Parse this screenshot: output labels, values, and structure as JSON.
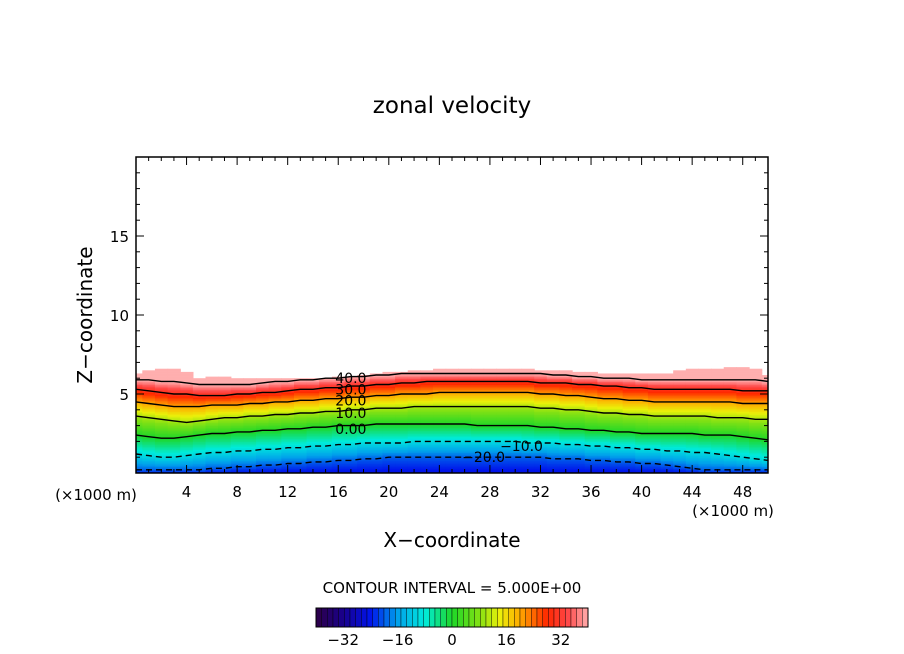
{
  "chart_data": {
    "type": "heatmap",
    "title": "zonal velocity",
    "xlabel": "X−coordinate",
    "ylabel": "Z−coordinate",
    "x_unit_left": "(×1000 m)",
    "x_unit_right": "(×1000 m)",
    "xlim": [
      0,
      50
    ],
    "ylim": [
      0,
      20
    ],
    "xticks": [
      4,
      8,
      12,
      16,
      20,
      24,
      28,
      32,
      36,
      40,
      44,
      48
    ],
    "yticks": [
      5,
      10,
      15
    ],
    "contour_interval_text": "CONTOUR INTERVAL = 5.000E+00",
    "contour_labels": [
      {
        "text": "40.0",
        "x": 17,
        "z": 6.0
      },
      {
        "text": "30.0",
        "x": 17,
        "z": 5.3
      },
      {
        "text": "20.0",
        "x": 17,
        "z": 4.6
      },
      {
        "text": "10.0",
        "x": 17,
        "z": 3.8
      },
      {
        "text": "0.00",
        "x": 17,
        "z": 2.8
      },
      {
        "text": "−10.0",
        "x": 30.5,
        "z": 1.7
      },
      {
        "text": "−20.0",
        "x": 27.5,
        "z": 1.0
      }
    ],
    "field_top_z": [
      6.3,
      6.5,
      6.6,
      6.6,
      6.4,
      6.0,
      6.1,
      6.1,
      6.0,
      6.0,
      6.0,
      6.0,
      6.0,
      6.0,
      6.0,
      6.0,
      6.1,
      6.1,
      6.2,
      6.3,
      6.4,
      6.4,
      6.5,
      6.5,
      6.55,
      6.55,
      6.6,
      6.6,
      6.6,
      6.6,
      6.6,
      6.55,
      6.5,
      6.5,
      6.45,
      6.4,
      6.35,
      6.3,
      6.3,
      6.3,
      6.3,
      6.3,
      6.3,
      6.5,
      6.6,
      6.6,
      6.6,
      6.65,
      6.65,
      6.6,
      6.2
    ],
    "contours": [
      {
        "value": 40,
        "z": [
          5.9,
          5.9,
          5.8,
          5.8,
          5.7,
          5.6,
          5.6,
          5.6,
          5.6,
          5.6,
          5.7,
          5.8,
          5.8,
          5.9,
          5.9,
          6.0,
          6.0,
          6.1,
          6.1,
          6.2,
          6.2,
          6.3,
          6.3,
          6.3,
          6.3,
          6.3,
          6.3,
          6.3,
          6.3,
          6.3,
          6.3,
          6.3,
          6.3,
          6.2,
          6.2,
          6.1,
          6.1,
          6.0,
          6.0,
          6.0,
          5.9,
          5.9,
          5.9,
          5.9,
          5.9,
          5.9,
          5.9,
          5.9,
          5.9,
          5.9,
          5.8
        ]
      },
      {
        "value": 30,
        "z": [
          5.3,
          5.2,
          5.1,
          5.0,
          5.0,
          4.9,
          4.9,
          4.9,
          5.0,
          5.0,
          5.1,
          5.1,
          5.2,
          5.3,
          5.3,
          5.4,
          5.4,
          5.5,
          5.5,
          5.6,
          5.6,
          5.7,
          5.7,
          5.8,
          5.8,
          5.8,
          5.8,
          5.8,
          5.8,
          5.8,
          5.8,
          5.8,
          5.7,
          5.7,
          5.7,
          5.6,
          5.6,
          5.5,
          5.5,
          5.4,
          5.4,
          5.3,
          5.3,
          5.3,
          5.3,
          5.3,
          5.3,
          5.3,
          5.2,
          5.2,
          5.2
        ]
      },
      {
        "value": 20,
        "z": [
          4.5,
          4.4,
          4.3,
          4.2,
          4.2,
          4.2,
          4.3,
          4.3,
          4.3,
          4.4,
          4.4,
          4.5,
          4.5,
          4.6,
          4.6,
          4.7,
          4.7,
          4.8,
          4.8,
          4.9,
          4.9,
          5.0,
          5.0,
          5.0,
          5.1,
          5.1,
          5.1,
          5.1,
          5.1,
          5.1,
          5.1,
          5.1,
          5.0,
          5.0,
          4.9,
          4.9,
          4.8,
          4.7,
          4.7,
          4.6,
          4.6,
          4.5,
          4.5,
          4.5,
          4.5,
          4.5,
          4.5,
          4.5,
          4.4,
          4.4,
          4.4
        ]
      },
      {
        "value": 10,
        "z": [
          3.6,
          3.5,
          3.4,
          3.3,
          3.2,
          3.3,
          3.4,
          3.5,
          3.5,
          3.6,
          3.6,
          3.7,
          3.7,
          3.8,
          3.8,
          3.9,
          3.9,
          4.0,
          4.0,
          4.1,
          4.1,
          4.1,
          4.2,
          4.2,
          4.2,
          4.2,
          4.2,
          4.2,
          4.2,
          4.2,
          4.2,
          4.2,
          4.1,
          4.1,
          4.0,
          4.0,
          3.9,
          3.8,
          3.8,
          3.7,
          3.7,
          3.6,
          3.6,
          3.6,
          3.6,
          3.6,
          3.5,
          3.5,
          3.5,
          3.4,
          3.4
        ]
      },
      {
        "value": 0,
        "z": [
          2.4,
          2.3,
          2.2,
          2.2,
          2.3,
          2.4,
          2.5,
          2.5,
          2.6,
          2.6,
          2.7,
          2.7,
          2.8,
          2.8,
          2.9,
          2.9,
          3.0,
          3.0,
          3.0,
          3.1,
          3.1,
          3.1,
          3.1,
          3.1,
          3.1,
          3.1,
          3.1,
          3.0,
          3.0,
          3.0,
          3.0,
          3.0,
          2.9,
          2.9,
          2.8,
          2.8,
          2.7,
          2.7,
          2.6,
          2.6,
          2.5,
          2.5,
          2.5,
          2.5,
          2.5,
          2.4,
          2.4,
          2.4,
          2.3,
          2.2,
          2.1
        ]
      },
      {
        "value": -10,
        "z": [
          1.2,
          1.1,
          1.0,
          1.0,
          1.1,
          1.2,
          1.3,
          1.3,
          1.4,
          1.4,
          1.5,
          1.5,
          1.6,
          1.6,
          1.7,
          1.7,
          1.8,
          1.8,
          1.9,
          1.9,
          1.9,
          1.9,
          2.0,
          2.0,
          2.0,
          2.0,
          2.0,
          2.0,
          2.0,
          2.0,
          2.0,
          1.9,
          1.9,
          1.9,
          1.8,
          1.8,
          1.7,
          1.7,
          1.6,
          1.6,
          1.5,
          1.5,
          1.4,
          1.4,
          1.3,
          1.3,
          1.2,
          1.1,
          1.0,
          0.9,
          0.8
        ]
      },
      {
        "value": -20,
        "z": [
          0.2,
          0.2,
          0.2,
          0.2,
          0.2,
          0.2,
          0.3,
          0.3,
          0.4,
          0.4,
          0.5,
          0.5,
          0.6,
          0.6,
          0.7,
          0.7,
          0.8,
          0.8,
          0.9,
          0.9,
          1.0,
          1.0,
          1.0,
          1.0,
          1.0,
          1.0,
          1.0,
          1.0,
          1.0,
          1.0,
          1.0,
          1.0,
          1.0,
          0.9,
          0.9,
          0.9,
          0.8,
          0.8,
          0.7,
          0.7,
          0.6,
          0.6,
          0.5,
          0.4,
          0.3,
          0.2,
          0.2,
          0.2,
          0.2,
          0.2,
          0.2
        ]
      }
    ],
    "colorbar": {
      "min": -40,
      "max": 40,
      "tick_values": [
        -32,
        -16,
        0,
        16,
        32
      ],
      "tick_labels": [
        "−32",
        "−16",
        "0",
        "16",
        "32"
      ]
    }
  }
}
